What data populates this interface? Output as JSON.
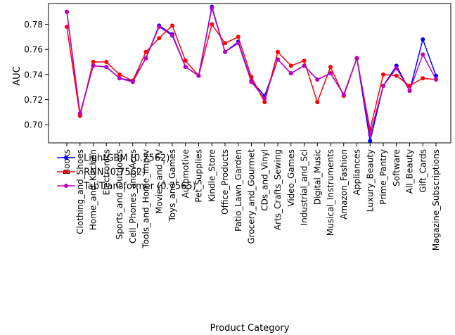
{
  "chart_data": {
    "type": "line",
    "xlabel": "Product Category",
    "ylabel": "AUC",
    "ylim": [
      0.6855,
      0.7966
    ],
    "yticks": [
      "0.70",
      "0.72",
      "0.74",
      "0.76",
      "0.78"
    ],
    "grid": false,
    "legend_position": "lower-left",
    "categories": [
      "Books",
      "Clothing_and_Shoes",
      "Home_and_Kitchen",
      "Electronics",
      "Sports_and_Outdoors",
      "Cell_Phones_and_Accs",
      "Tools_and_Home_Imprv",
      "Movies_and_TV",
      "Toys_and_Games",
      "Automotive",
      "Pet_Supplies",
      "Kindle_Store",
      "Office_Products",
      "Patio_Lawn_Garden",
      "Grocery_and_Gourmet",
      "CDs_and_Vinyl",
      "Arts_Crafts_Sewing",
      "Video_Games",
      "Industrial_and_Sci",
      "Digital_Music",
      "Musical_Instruments",
      "Amazon_Fashion",
      "Appliances",
      "Luxury_Beauty",
      "Prime_Pantry",
      "Software",
      "All_Beauty",
      "Gift_Cards",
      "Magazine_Subscriptions"
    ],
    "series": [
      {
        "name": "LightGBM (0.7562)",
        "color": "#0000ff",
        "values": [
          0.79,
          0.708,
          0.747,
          0.746,
          0.737,
          0.735,
          0.753,
          0.779,
          0.772,
          0.746,
          0.739,
          0.794,
          0.758,
          0.766,
          0.735,
          0.723,
          0.752,
          0.741,
          0.747,
          0.736,
          0.741,
          0.724,
          0.753,
          0.687,
          0.731,
          0.747,
          0.727,
          0.768,
          0.739
        ]
      },
      {
        "name": "RNN (0.7562)",
        "color": "#ff0000",
        "values": [
          0.778,
          0.707,
          0.75,
          0.75,
          0.74,
          0.735,
          0.758,
          0.769,
          0.779,
          0.751,
          0.739,
          0.78,
          0.765,
          0.77,
          0.738,
          0.718,
          0.758,
          0.747,
          0.751,
          0.718,
          0.746,
          0.723,
          0.753,
          0.696,
          0.74,
          0.739,
          0.731,
          0.737,
          0.736
        ]
      },
      {
        "name": "TabTransformer (0.7565)",
        "color": "#bf00bf",
        "values": [
          0.79,
          0.709,
          0.747,
          0.746,
          0.737,
          0.734,
          0.753,
          0.778,
          0.771,
          0.746,
          0.739,
          0.793,
          0.758,
          0.765,
          0.734,
          0.721,
          0.752,
          0.741,
          0.747,
          0.736,
          0.741,
          0.724,
          0.753,
          0.692,
          0.731,
          0.745,
          0.727,
          0.756,
          0.736
        ]
      }
    ]
  }
}
